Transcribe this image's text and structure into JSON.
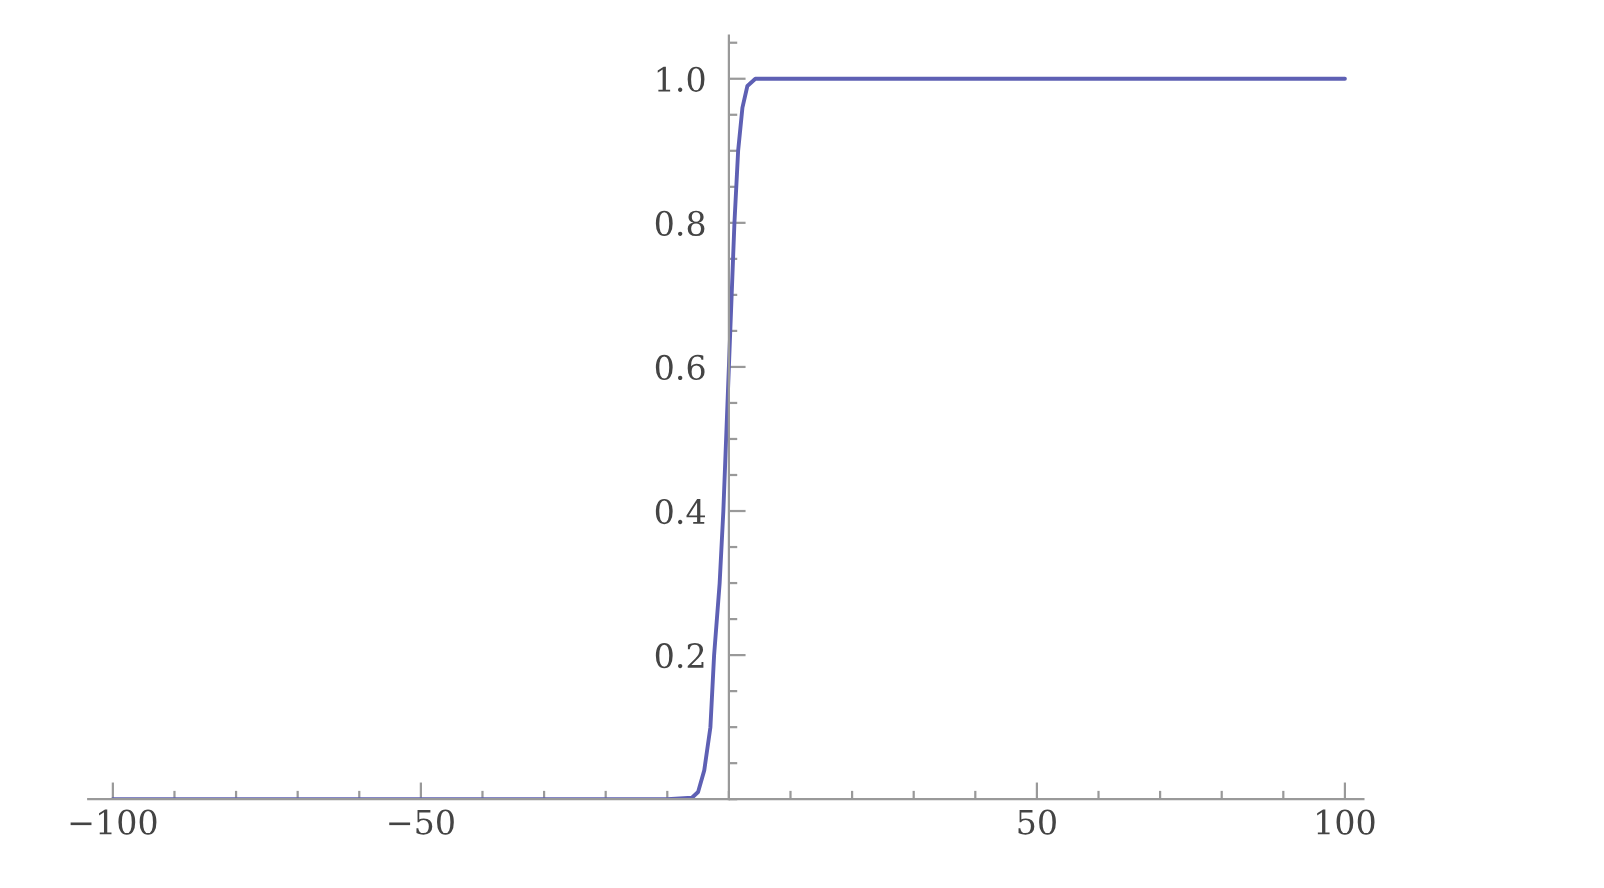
{
  "chart_data": {
    "type": "line",
    "x": [
      -100,
      -10,
      -6,
      -5,
      -4,
      -3,
      -2.4,
      -1.5,
      -0.9,
      0,
      0.9,
      1.5,
      2.2,
      3,
      4.3,
      10,
      100
    ],
    "series": [
      {
        "color": "#5e60b4",
        "values": [
          0,
          0,
          0.002,
          0.01,
          0.04,
          0.1,
          0.2,
          0.3,
          0.4,
          0.6,
          0.8,
          0.9,
          0.96,
          0.99,
          1,
          1,
          1
        ]
      }
    ],
    "xlim": [
      -104,
      103
    ],
    "ylim": [
      0,
      1.06
    ],
    "xticks": [
      {
        "value": -100,
        "label": "−100"
      },
      {
        "value": -50,
        "label": "−50"
      },
      50,
      100
    ],
    "yticks": [
      0.2,
      0.4,
      0.6,
      0.8,
      {
        "value": 1.0,
        "label": "1.0"
      }
    ],
    "grid": false,
    "marker": "none",
    "line_style": "solid"
  }
}
